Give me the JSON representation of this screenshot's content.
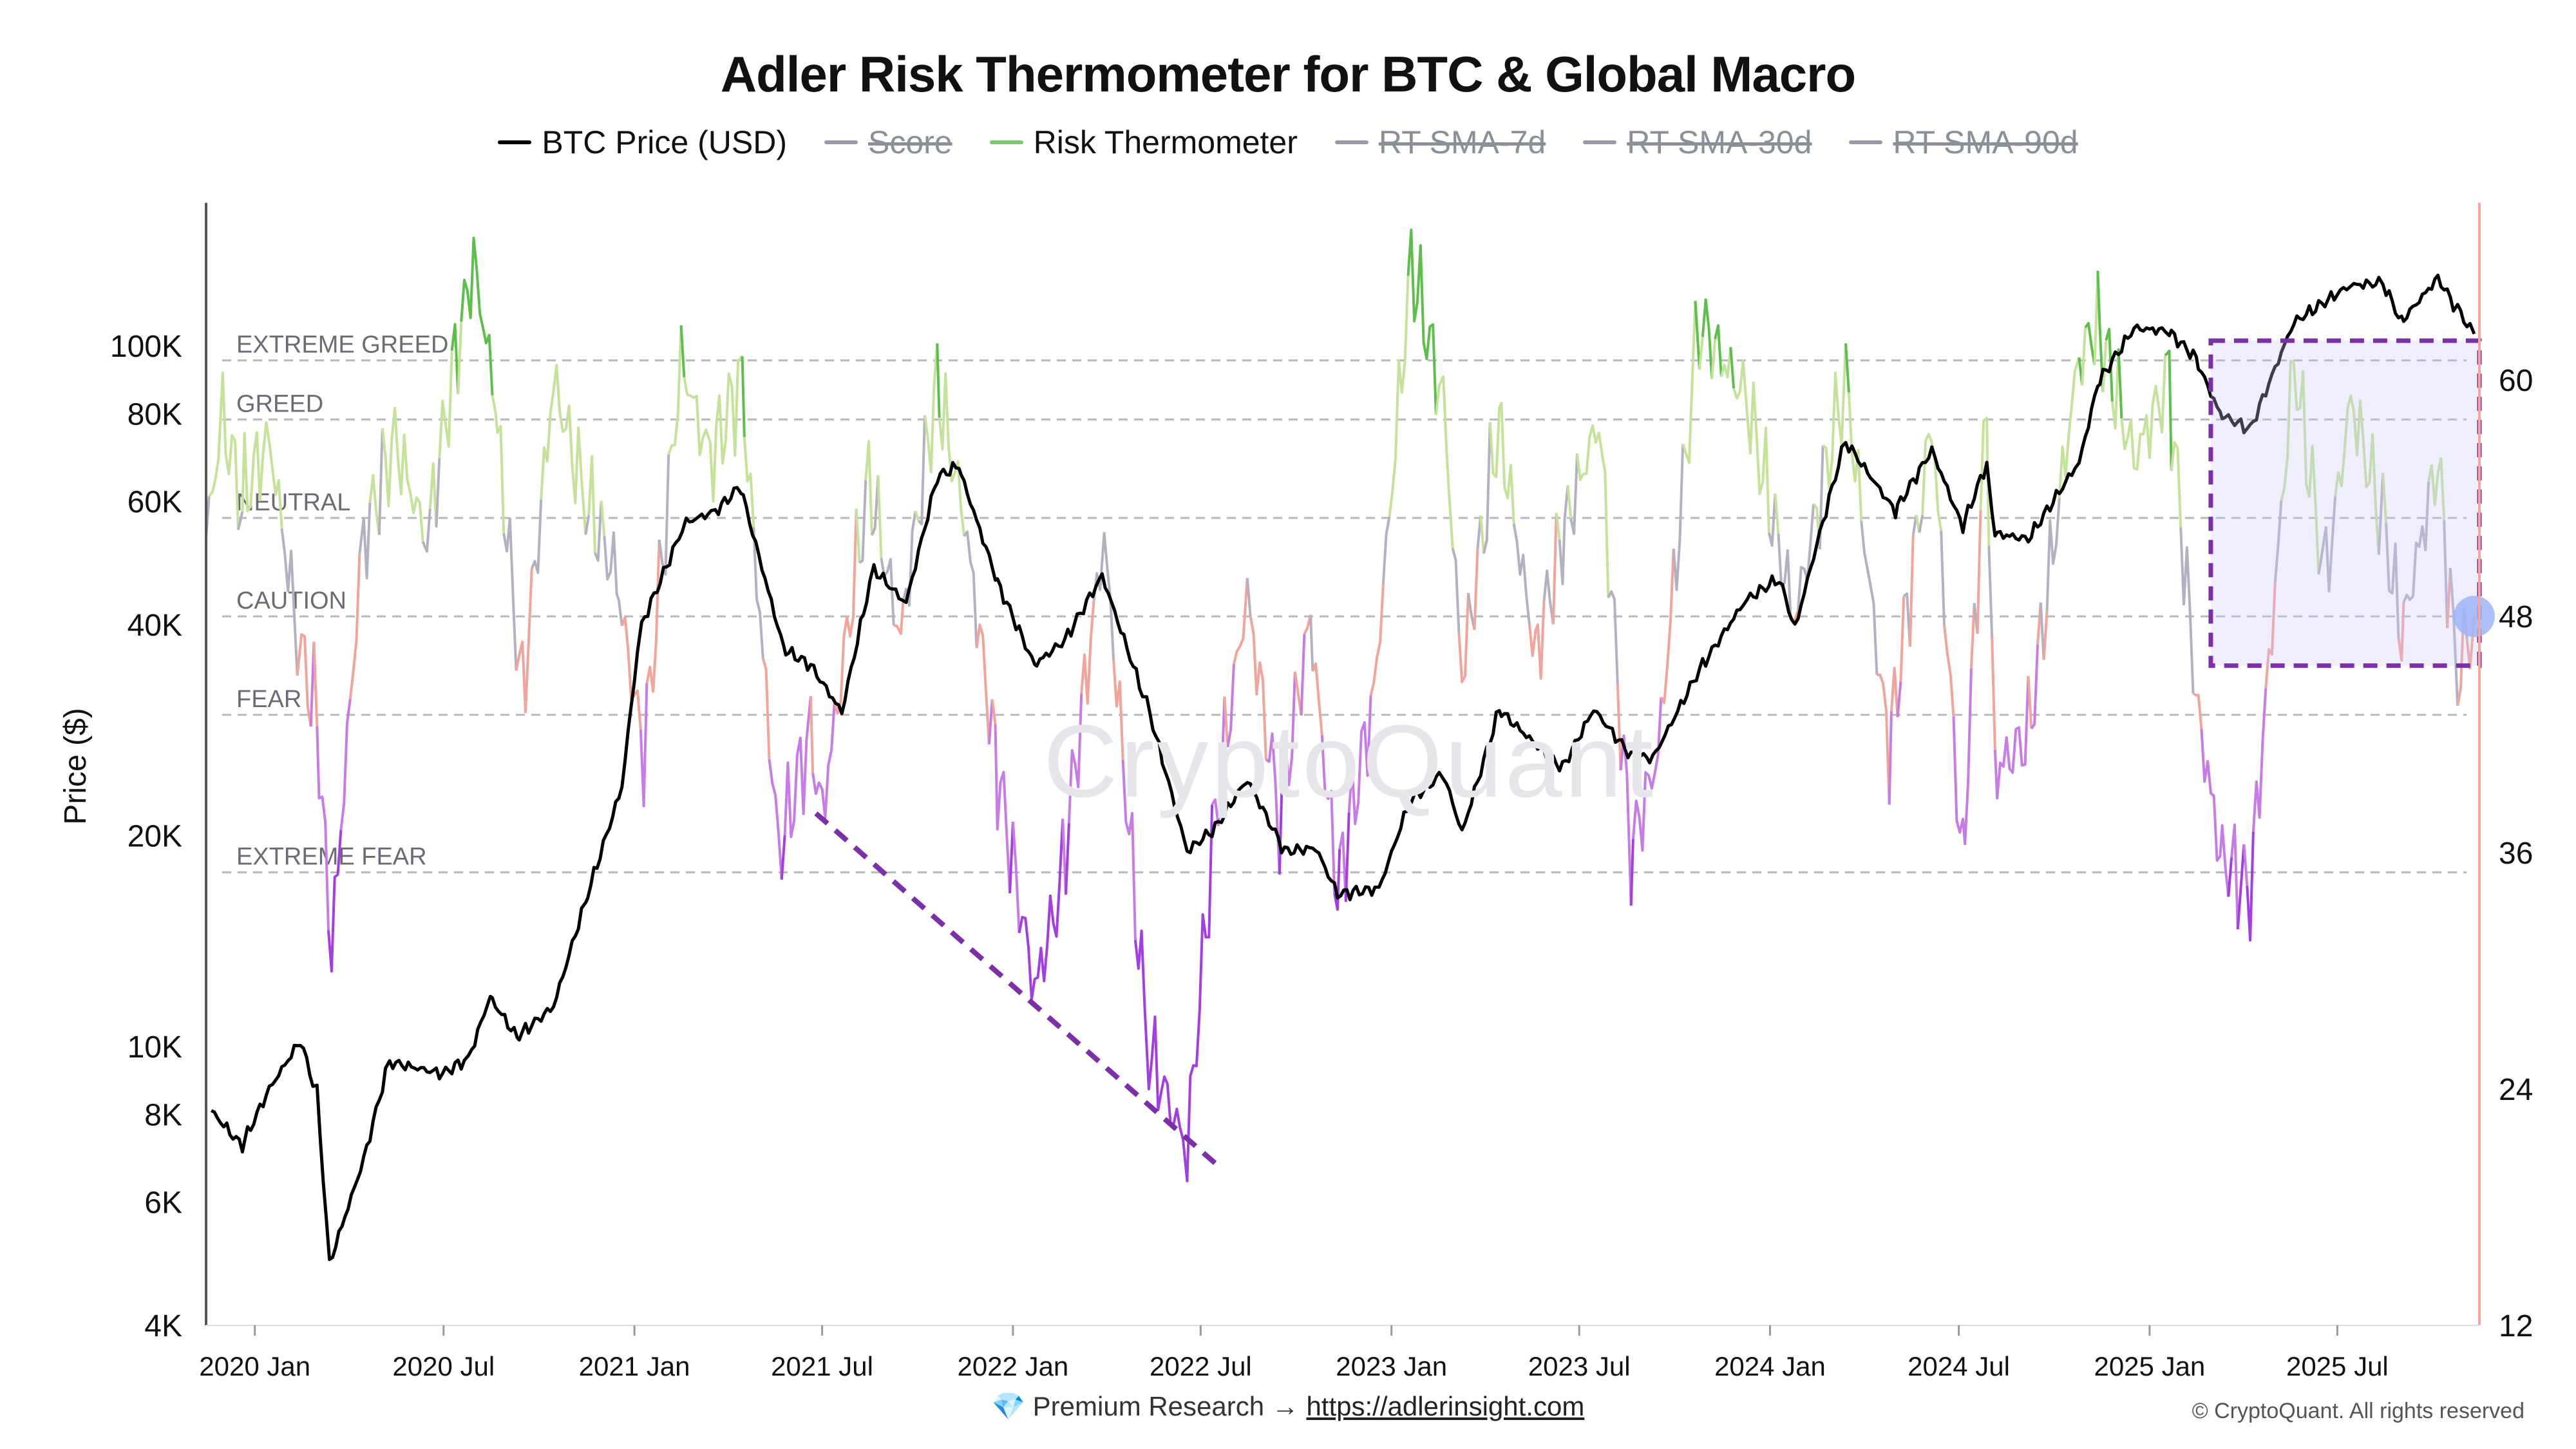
{
  "title": "Adler Risk Thermometer for BTC & Global Macro",
  "legend": [
    {
      "label": "BTC Price (USD)",
      "color": "#000000",
      "active": true
    },
    {
      "label": "Score",
      "color": "#9a9aa6",
      "active": false
    },
    {
      "label": "Risk Thermometer",
      "color": "#7bc96f",
      "active": true
    },
    {
      "label": "RT SMA-7d",
      "color": "#9a9aa6",
      "active": false
    },
    {
      "label": "RT SMA-30d",
      "color": "#9a9aa6",
      "active": false
    },
    {
      "label": "RT SMA-90d",
      "color": "#9a9aa6",
      "active": false
    }
  ],
  "watermark": "CryptoQuant",
  "footer": {
    "icon": "diamond-icon",
    "text": "Premium Research →",
    "link": "https://adlerinsight.com"
  },
  "copyright": "© CryptoQuant. All rights reserved",
  "chart_data": {
    "type": "line",
    "x_axis": {
      "ticks": [
        "2020 Jan",
        "2020 Jul",
        "2021 Jan",
        "2021 Jul",
        "2022 Jan",
        "2022 Jul",
        "2023 Jan",
        "2023 Jul",
        "2024 Jan",
        "2024 Jul",
        "2025 Jan",
        "2025 Jul"
      ],
      "range": [
        "2019-11-15",
        "2025-11-15"
      ]
    },
    "y_left": {
      "label": "Price ($)",
      "scale": "log",
      "range": [
        4000,
        160000
      ],
      "ticks": [
        {
          "v": 4000,
          "label": "4K"
        },
        {
          "v": 6000,
          "label": "6K"
        },
        {
          "v": 8000,
          "label": "8K"
        },
        {
          "v": 10000,
          "label": "10K"
        },
        {
          "v": 20000,
          "label": "20K"
        },
        {
          "v": 40000,
          "label": "40K"
        },
        {
          "v": 60000,
          "label": "60K"
        },
        {
          "v": 80000,
          "label": "80K"
        },
        {
          "v": 100000,
          "label": "100K"
        }
      ]
    },
    "y_right": {
      "range": [
        12,
        69
      ],
      "ticks": [
        12,
        24,
        36,
        48,
        60
      ]
    },
    "zones": [
      {
        "label": "EXTREME GREED",
        "value": 61
      },
      {
        "label": "GREED",
        "value": 58
      },
      {
        "label": "NEUTRAL",
        "value": 53
      },
      {
        "label": "CAUTION",
        "value": 48
      },
      {
        "label": "FEAR",
        "value": 43
      },
      {
        "label": "EXTREME FEAR",
        "value": 35
      }
    ],
    "zone_colors": {
      "greed_strong": "#5cbf4a",
      "greed": "#c5e29a",
      "neutral": "#b3b0c2",
      "caution": "#f2a49a",
      "fear": "#c77be6",
      "extreme_fear": "#a23ee3"
    },
    "btc_price_keypoints": [
      [
        "2019-11-20",
        8100
      ],
      [
        "2019-12-20",
        7200
      ],
      [
        "2020-01-15",
        8700
      ],
      [
        "2020-02-14",
        10200
      ],
      [
        "2020-03-01",
        8600
      ],
      [
        "2020-03-13",
        4900
      ],
      [
        "2020-04-15",
        6900
      ],
      [
        "2020-05-10",
        9500
      ],
      [
        "2020-06-30",
        9150
      ],
      [
        "2020-07-25",
        9600
      ],
      [
        "2020-08-15",
        11800
      ],
      [
        "2020-09-10",
        10300
      ],
      [
        "2020-10-15",
        11400
      ],
      [
        "2020-11-15",
        16000
      ],
      [
        "2020-12-20",
        23500
      ],
      [
        "2021-01-08",
        40000
      ],
      [
        "2021-02-20",
        56000
      ],
      [
        "2021-03-20",
        58000
      ],
      [
        "2021-04-14",
        63000
      ],
      [
        "2021-05-25",
        37000
      ],
      [
        "2021-06-20",
        35000
      ],
      [
        "2021-07-20",
        30000
      ],
      [
        "2021-08-20",
        48000
      ],
      [
        "2021-09-20",
        43000
      ],
      [
        "2021-10-20",
        65000
      ],
      [
        "2021-11-10",
        67500
      ],
      [
        "2021-12-15",
        47000
      ],
      [
        "2022-01-22",
        35000
      ],
      [
        "2022-02-20",
        38000
      ],
      [
        "2022-03-28",
        47000
      ],
      [
        "2022-05-10",
        31000
      ],
      [
        "2022-06-18",
        19000
      ],
      [
        "2022-07-15",
        20500
      ],
      [
        "2022-08-15",
        24000
      ],
      [
        "2022-09-20",
        19000
      ],
      [
        "2022-10-20",
        19200
      ],
      [
        "2022-11-10",
        16500
      ],
      [
        "2022-12-20",
        16800
      ],
      [
        "2023-01-20",
        22500
      ],
      [
        "2023-02-20",
        24500
      ],
      [
        "2023-03-10",
        20200
      ],
      [
        "2023-04-15",
        30300
      ],
      [
        "2023-05-20",
        27000
      ],
      [
        "2023-06-15",
        25000
      ],
      [
        "2023-07-15",
        30300
      ],
      [
        "2023-08-20",
        26000
      ],
      [
        "2023-09-10",
        25800
      ],
      [
        "2023-10-25",
        34500
      ],
      [
        "2023-12-10",
        43500
      ],
      [
        "2024-01-10",
        46500
      ],
      [
        "2024-01-25",
        39500
      ],
      [
        "2024-02-15",
        52000
      ],
      [
        "2024-03-14",
        73000
      ],
      [
        "2024-05-01",
        58000
      ],
      [
        "2024-06-05",
        71000
      ],
      [
        "2024-07-05",
        55000
      ],
      [
        "2024-07-28",
        68000
      ],
      [
        "2024-08-05",
        54000
      ],
      [
        "2024-09-06",
        53000
      ],
      [
        "2024-10-25",
        68000
      ],
      [
        "2024-11-12",
        88000
      ],
      [
        "2024-12-17",
        106000
      ],
      [
        "2025-01-20",
        105000
      ],
      [
        "2025-02-15",
        96000
      ],
      [
        "2025-03-10",
        80000
      ],
      [
        "2025-04-08",
        76000
      ],
      [
        "2025-05-20",
        108000
      ],
      [
        "2025-07-14",
        122000
      ],
      [
        "2025-08-14",
        123000
      ],
      [
        "2025-09-01",
        108000
      ],
      [
        "2025-10-06",
        125000
      ],
      [
        "2025-10-25",
        113000
      ],
      [
        "2025-11-10",
        104000
      ]
    ],
    "risk_thermometer_keypoints": [
      [
        "2019-11-15",
        52
      ],
      [
        "2019-12-01",
        58
      ],
      [
        "2019-12-20",
        54
      ],
      [
        "2020-01-15",
        57
      ],
      [
        "2020-02-15",
        46
      ],
      [
        "2020-03-01",
        43
      ],
      [
        "2020-03-15",
        31
      ],
      [
        "2020-04-15",
        52
      ],
      [
        "2020-05-15",
        57
      ],
      [
        "2020-06-15",
        52
      ],
      [
        "2020-07-15",
        62
      ],
      [
        "2020-07-30",
        66
      ],
      [
        "2020-08-20",
        59
      ],
      [
        "2020-09-15",
        44
      ],
      [
        "2020-10-15",
        60
      ],
      [
        "2020-11-15",
        54
      ],
      [
        "2020-12-15",
        50
      ],
      [
        "2021-01-10",
        41
      ],
      [
        "2021-02-15",
        61
      ],
      [
        "2021-03-15",
        56
      ],
      [
        "2021-04-15",
        60
      ],
      [
        "2021-05-20",
        36
      ],
      [
        "2021-06-20",
        42
      ],
      [
        "2021-07-01",
        38
      ],
      [
        "2021-08-15",
        55
      ],
      [
        "2021-09-15",
        47
      ],
      [
        "2021-10-20",
        60
      ],
      [
        "2021-11-15",
        53
      ],
      [
        "2021-12-15",
        41
      ],
      [
        "2022-01-22",
        29
      ],
      [
        "2022-02-15",
        34
      ],
      [
        "2022-03-30",
        52
      ],
      [
        "2022-05-12",
        26
      ],
      [
        "2022-06-18",
        21
      ],
      [
        "2022-07-15",
        38
      ],
      [
        "2022-08-15",
        49
      ],
      [
        "2022-09-15",
        38
      ],
      [
        "2022-10-15",
        48
      ],
      [
        "2022-11-10",
        34
      ],
      [
        "2022-12-15",
        44
      ],
      [
        "2023-01-20",
        66
      ],
      [
        "2023-02-20",
        59
      ],
      [
        "2023-03-10",
        45
      ],
      [
        "2023-04-15",
        58
      ],
      [
        "2023-05-20",
        46
      ],
      [
        "2023-06-15",
        52
      ],
      [
        "2023-07-20",
        58
      ],
      [
        "2023-08-20",
        36
      ],
      [
        "2023-09-15",
        41
      ],
      [
        "2023-10-25",
        63
      ],
      [
        "2023-12-10",
        59
      ],
      [
        "2024-01-25",
        48
      ],
      [
        "2024-03-14",
        60
      ],
      [
        "2024-04-25",
        41
      ],
      [
        "2024-06-05",
        58
      ],
      [
        "2024-07-05",
        35
      ],
      [
        "2024-07-28",
        59
      ],
      [
        "2024-08-05",
        40
      ],
      [
        "2024-09-06",
        42
      ],
      [
        "2024-10-25",
        61
      ],
      [
        "2024-11-12",
        63
      ],
      [
        "2024-12-17",
        56
      ],
      [
        "2025-01-20",
        60
      ],
      [
        "2025-02-15",
        44
      ],
      [
        "2025-03-10",
        36
      ],
      [
        "2025-04-08",
        34
      ],
      [
        "2025-05-20",
        61
      ],
      [
        "2025-06-20",
        50
      ],
      [
        "2025-07-14",
        59
      ],
      [
        "2025-08-14",
        53
      ],
      [
        "2025-09-01",
        47
      ],
      [
        "2025-10-06",
        56
      ],
      [
        "2025-10-25",
        45
      ],
      [
        "2025-11-10",
        48
      ]
    ],
    "annotations": [
      {
        "type": "dashed-trendline",
        "color": "#7b2fa8",
        "from": [
          "2021-06-25",
          38
        ],
        "to": [
          "2022-07-20",
          20
        ]
      },
      {
        "type": "dashed-box",
        "color": "#7b2fa8",
        "x": [
          "2025-03-01",
          "2025-11-15"
        ],
        "y": [
          45.5,
          62
        ]
      },
      {
        "type": "marker",
        "color": "#9fb4f7",
        "at": [
          "2025-11-10",
          48
        ]
      }
    ]
  }
}
